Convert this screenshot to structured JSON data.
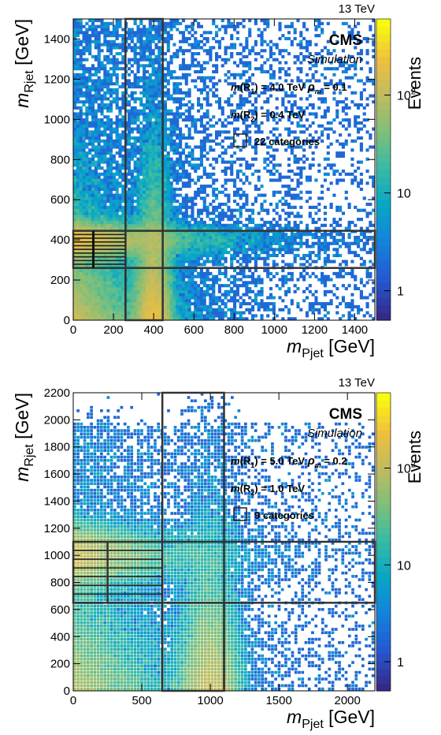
{
  "chart_data": [
    {
      "type": "heatmap",
      "energy": "13 TeV",
      "experiment": "CMS",
      "subtitle": "Simulation",
      "legend": {
        "line1": "m(R",
        "line1_sub": "1",
        "line1_rest": ") = 4.0 TeV",
        "rho": "ρ",
        "rho_sub": "m",
        "rho_rest": "= 0.1",
        "line2": "m(R",
        "line2_sub": "2",
        "line2_rest": ") = 0.4 TeV",
        "box_label": "22 categories"
      },
      "xlabel": "m",
      "xlabel_sub": "Pjet",
      "xlabel_unit": "[GeV]",
      "ylabel": "m",
      "ylabel_sub": "Rjet",
      "ylabel_unit": "[GeV]",
      "zlabel": "Events",
      "xlim": [
        0,
        1500
      ],
      "ylim": [
        0,
        1500
      ],
      "xticks": [
        0,
        200,
        400,
        600,
        800,
        1000,
        1200,
        1400
      ],
      "yticks": [
        0,
        200,
        400,
        600,
        800,
        1000,
        1200,
        1400
      ],
      "zlim": [
        0.5,
        600
      ],
      "zticks": [
        "1",
        "10",
        "10²"
      ],
      "zscale": "log",
      "signal_peaks": {
        "m_R1": 4000,
        "m_R2": 400,
        "rho_m": 0.1
      },
      "mass_windows": {
        "vertical": [
          260,
          445
        ],
        "horizontal": [
          260,
          445
        ]
      },
      "categories": 22
    },
    {
      "type": "heatmap",
      "energy": "13 TeV",
      "experiment": "CMS",
      "subtitle": "Simulation",
      "legend": {
        "line1": "m(R",
        "line1_sub": "1",
        "line1_rest": ") = 5.0 TeV",
        "rho": "ρ",
        "rho_sub": "m",
        "rho_rest": "= 0.2",
        "line2": "m(R",
        "line2_sub": "2",
        "line2_rest": ") = 1.0 TeV",
        "box_label": "9 categories"
      },
      "xlabel": "m",
      "xlabel_sub": "Pjet",
      "xlabel_unit": "[GeV]",
      "ylabel": "m",
      "ylabel_sub": "Rjet",
      "ylabel_unit": "[GeV]",
      "zlabel": "Events",
      "xlim": [
        0,
        2200
      ],
      "ylim": [
        0,
        2200
      ],
      "xticks": [
        0,
        500,
        1000,
        1500,
        2000
      ],
      "yticks": [
        0,
        200,
        400,
        600,
        800,
        1000,
        1200,
        1400,
        1600,
        1800,
        2000,
        2200
      ],
      "zlim": [
        0.5,
        600
      ],
      "zticks": [
        "1",
        "10",
        "10²"
      ],
      "zscale": "log",
      "signal_peaks": {
        "m_R1": 5000,
        "m_R2": 1000,
        "rho_m": 0.2
      },
      "mass_windows": {
        "vertical": [
          650,
          1100
        ],
        "horizontal": [
          650,
          1100
        ]
      },
      "categories": 9
    }
  ]
}
